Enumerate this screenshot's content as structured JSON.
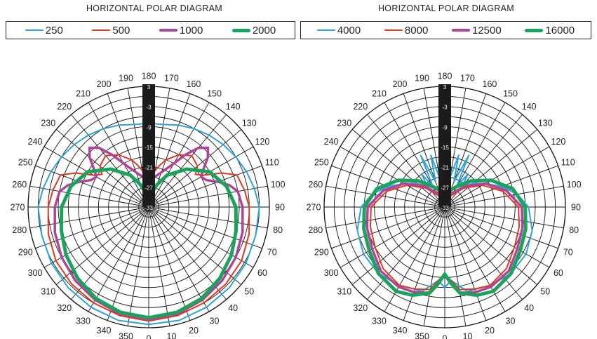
{
  "chart_data": [
    {
      "type": "polar",
      "title": "HORIZONTAL POLAR DIAGRAM",
      "angle_labels": [
        "180",
        "170",
        "160",
        "150",
        "140",
        "130",
        "120",
        "110",
        "100",
        "90",
        "80",
        "70",
        "60",
        "50",
        "40",
        "30",
        "20",
        "10",
        "0",
        "350",
        "340",
        "330",
        "320",
        "310",
        "300",
        "290",
        "280",
        "270",
        "260",
        "250",
        "240",
        "230",
        "220",
        "210",
        "200",
        "190"
      ],
      "radial_labels": [
        "3",
        "-3",
        "-9",
        "-15",
        "-21",
        "-27",
        "-33"
      ],
      "rlim": [
        -33,
        3
      ],
      "series": [
        {
          "name": "250",
          "color": "#2aa3d6",
          "width": 2,
          "theta": [
            0,
            15,
            30,
            45,
            60,
            75,
            90,
            100,
            110,
            120,
            130,
            140,
            150,
            160,
            170,
            180,
            190,
            200,
            210,
            220,
            230,
            240,
            250,
            260,
            270,
            285,
            300,
            315,
            330,
            345,
            360
          ],
          "r": [
            2,
            2,
            1.5,
            1,
            0.5,
            0,
            0,
            -1,
            -2,
            -3,
            -4,
            -5,
            -6,
            -7,
            -8,
            -8,
            -8,
            -7,
            -6,
            -5,
            -4,
            -3,
            -2,
            -1,
            0,
            0,
            0.5,
            1,
            1.5,
            2,
            2
          ]
        },
        {
          "name": "500",
          "color": "#e0371f",
          "width": 2,
          "theta": [
            0,
            15,
            30,
            45,
            60,
            75,
            90,
            100,
            110,
            115,
            120,
            125,
            130,
            140,
            150,
            160,
            165,
            170,
            180,
            190,
            195,
            200,
            210,
            220,
            230,
            235,
            240,
            245,
            250,
            260,
            270,
            285,
            300,
            315,
            330,
            345,
            360
          ],
          "r": [
            1,
            0.5,
            0,
            -0.5,
            -1,
            -2,
            -3,
            -4,
            -5,
            -9,
            -14,
            -16,
            -14,
            -13,
            -15,
            -18,
            -20,
            -22,
            -23,
            -22,
            -20,
            -18,
            -15,
            -13,
            -14,
            -16,
            -14,
            -9,
            -5,
            -4,
            -3,
            -2,
            -1,
            -0.5,
            0,
            0.5,
            1
          ]
        },
        {
          "name": "1000",
          "color": "#b0449b",
          "width": 3.5,
          "theta": [
            0,
            15,
            30,
            45,
            60,
            75,
            90,
            100,
            105,
            110,
            115,
            120,
            125,
            130,
            135,
            140,
            145,
            150,
            160,
            170,
            180,
            190,
            200,
            210,
            215,
            220,
            225,
            230,
            235,
            240,
            245,
            250,
            255,
            260,
            270,
            285,
            300,
            315,
            330,
            345,
            360
          ],
          "r": [
            0.5,
            0,
            -1,
            -2,
            -3,
            -4,
            -5,
            -6,
            -8,
            -11,
            -14,
            -15,
            -13,
            -10,
            -8,
            -10,
            -14,
            -18,
            -22,
            -24,
            -25,
            -24,
            -22,
            -18,
            -14,
            -10,
            -8,
            -10,
            -13,
            -15,
            -14,
            -11,
            -8,
            -6,
            -5,
            -4,
            -3,
            -2,
            -1,
            0,
            0.5
          ]
        },
        {
          "name": "2000",
          "color": "#1aa35a",
          "width": 5,
          "theta": [
            0,
            15,
            30,
            45,
            60,
            75,
            90,
            105,
            120,
            135,
            150,
            160,
            165,
            170,
            175,
            180,
            185,
            190,
            195,
            200,
            210,
            225,
            240,
            255,
            270,
            285,
            300,
            315,
            330,
            345,
            360
          ],
          "r": [
            0,
            -0.5,
            -1.5,
            -3,
            -4.5,
            -6,
            -7,
            -9,
            -12,
            -17,
            -22,
            -26,
            -28,
            -29,
            -29,
            -29,
            -29,
            -29,
            -28,
            -26,
            -22,
            -17,
            -12,
            -9,
            -7,
            -6,
            -4.5,
            -3,
            -1.5,
            -0.5,
            0
          ]
        }
      ]
    },
    {
      "type": "polar",
      "title": "HORIZONTAL POLAR DIAGRAM",
      "angle_labels": [
        "180",
        "170",
        "160",
        "150",
        "140",
        "130",
        "120",
        "110",
        "100",
        "90",
        "80",
        "70",
        "60",
        "50",
        "40",
        "30",
        "20",
        "10",
        "0",
        "350",
        "340",
        "330",
        "320",
        "310",
        "300",
        "290",
        "280",
        "270",
        "260",
        "250",
        "240",
        "230",
        "220",
        "210",
        "200",
        "190"
      ],
      "radial_labels": [
        "3",
        "-3",
        "-9",
        "-15",
        "-21",
        "-27",
        "-33"
      ],
      "rlim": [
        -33,
        3
      ],
      "series": [
        {
          "name": "4000",
          "color": "#2aa3d6",
          "width": 2,
          "theta": [
            0,
            5,
            15,
            30,
            45,
            60,
            75,
            90,
            100,
            110,
            120,
            130,
            140,
            145,
            150,
            155,
            160,
            165,
            170,
            175,
            180,
            185,
            190,
            195,
            200,
            205,
            210,
            215,
            220,
            230,
            240,
            250,
            260,
            270,
            285,
            300,
            315,
            330,
            345,
            355,
            360
          ],
          "r": [
            -9,
            -11,
            -7,
            -6,
            -5,
            -5,
            -6,
            -8,
            -11,
            -15,
            -19,
            -22,
            -25,
            -21,
            -26,
            -16,
            -25,
            -17,
            -24,
            -16,
            -22,
            -16,
            -24,
            -17,
            -25,
            -16,
            -26,
            -21,
            -25,
            -22,
            -19,
            -15,
            -11,
            -8,
            -6,
            -5,
            -5,
            -6,
            -7,
            -11,
            -9
          ]
        },
        {
          "name": "8000",
          "color": "#e0371f",
          "width": 2,
          "theta": [
            0,
            5,
            10,
            20,
            30,
            45,
            60,
            75,
            90,
            105,
            120,
            135,
            150,
            165,
            180,
            195,
            210,
            225,
            240,
            255,
            270,
            285,
            300,
            315,
            330,
            340,
            350,
            355,
            360
          ],
          "r": [
            -13,
            -11,
            -8,
            -7,
            -6,
            -7,
            -9,
            -10,
            -11,
            -15,
            -20,
            -25,
            -29,
            -30,
            -30,
            -30,
            -29,
            -25,
            -20,
            -15,
            -11,
            -10,
            -9,
            -7,
            -6,
            -7,
            -8,
            -11,
            -13
          ]
        },
        {
          "name": "12500",
          "color": "#b0449b",
          "width": 3.5,
          "theta": [
            0,
            5,
            10,
            20,
            30,
            45,
            60,
            75,
            90,
            105,
            120,
            135,
            150,
            165,
            180,
            195,
            210,
            225,
            240,
            255,
            270,
            285,
            300,
            315,
            330,
            340,
            350,
            355,
            360
          ],
          "r": [
            -13,
            -10,
            -7,
            -6,
            -5.5,
            -6,
            -8,
            -9,
            -10,
            -14,
            -19,
            -24,
            -28,
            -29,
            -29,
            -29,
            -28,
            -24,
            -19,
            -14,
            -10,
            -9,
            -8,
            -6,
            -5.5,
            -6,
            -7,
            -10,
            -13
          ]
        },
        {
          "name": "16000",
          "color": "#1aa35a",
          "width": 5,
          "theta": [
            0,
            5,
            10,
            20,
            30,
            45,
            60,
            75,
            90,
            105,
            120,
            135,
            150,
            165,
            180,
            195,
            210,
            225,
            240,
            255,
            270,
            285,
            300,
            315,
            330,
            340,
            350,
            355,
            360
          ],
          "r": [
            -13,
            -10,
            -7,
            -5,
            -4,
            -5,
            -7,
            -8,
            -9,
            -12,
            -17,
            -22,
            -26,
            -28,
            -29,
            -28,
            -26,
            -22,
            -17,
            -12,
            -9,
            -8,
            -7,
            -5,
            -4,
            -5,
            -7,
            -10,
            -13
          ]
        }
      ]
    }
  ]
}
